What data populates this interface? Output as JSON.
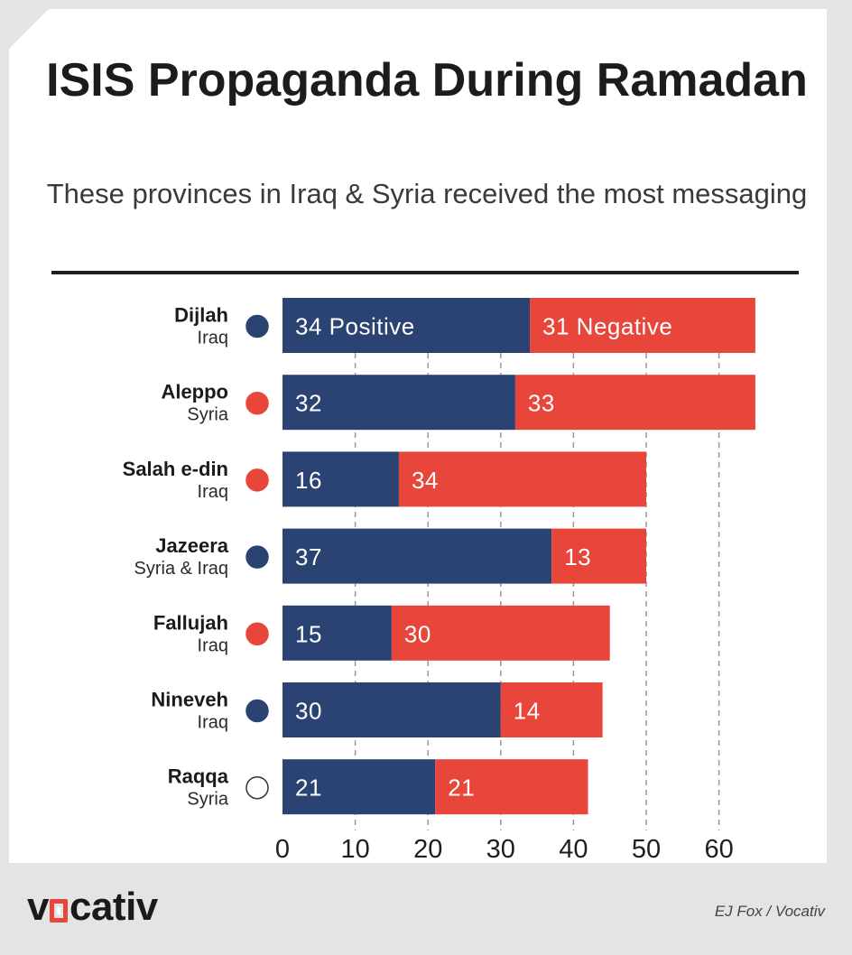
{
  "title": "ISIS Propaganda During Ramadan",
  "subtitle": "These provinces in Iraq & Syria received the most messaging",
  "footer": {
    "brand": "vocativ",
    "credit": "EJ Fox / Vocativ"
  },
  "colors": {
    "positive": "#2b4373",
    "negative": "#e8463a",
    "background": "#e4e4e4"
  },
  "chart_data": {
    "type": "bar",
    "orientation": "horizontal",
    "stacked": true,
    "categories": [
      {
        "name": "Dijlah",
        "country": "Iraq",
        "marker": "positive"
      },
      {
        "name": "Aleppo",
        "country": "Syria",
        "marker": "negative"
      },
      {
        "name": "Salah e-din",
        "country": "Iraq",
        "marker": "negative"
      },
      {
        "name": "Jazeera",
        "country": "Syria & Iraq",
        "marker": "positive"
      },
      {
        "name": "Fallujah",
        "country": "Iraq",
        "marker": "negative"
      },
      {
        "name": "Nineveh",
        "country": "Iraq",
        "marker": "positive"
      },
      {
        "name": "Raqqa",
        "country": "Syria",
        "marker": "neutral"
      }
    ],
    "series": [
      {
        "name": "Positive",
        "values": [
          34,
          32,
          16,
          37,
          15,
          30,
          21
        ],
        "labels": [
          "34 Positive",
          "32",
          "16",
          "37",
          "15",
          "30",
          "21"
        ]
      },
      {
        "name": "Negative",
        "values": [
          31,
          33,
          34,
          13,
          30,
          14,
          21
        ],
        "labels": [
          "31 Negative",
          "33",
          "34",
          "13",
          "30",
          "14",
          "21"
        ]
      }
    ],
    "xlim": [
      0,
      65
    ],
    "xticks": [
      "0",
      "10",
      "20",
      "30",
      "40",
      "50",
      "60"
    ],
    "grid": true
  }
}
